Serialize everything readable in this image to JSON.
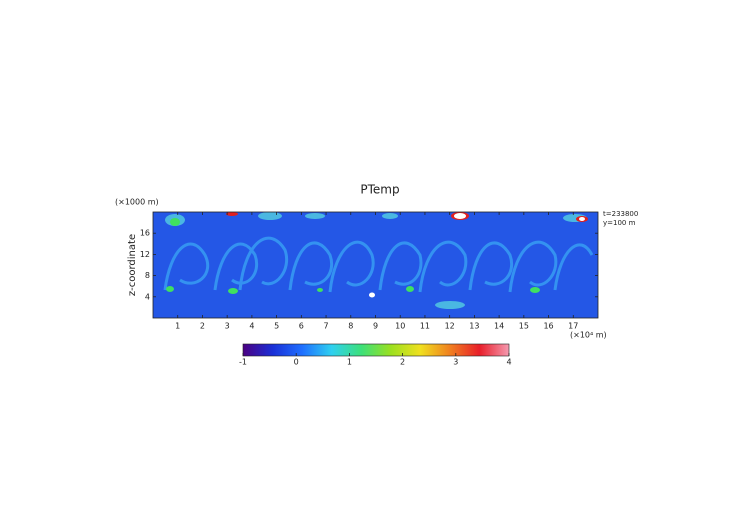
{
  "chart_data": {
    "type": "heatmap",
    "title": "PTemp",
    "xlabel": "(×10⁴ m)",
    "ylabel": "z-coordinate",
    "ylabel_unit": "(×1000 m)",
    "annotations": [
      "t=233800",
      "y=100 m"
    ],
    "xlim": [
      0,
      18
    ],
    "xticks": [
      1,
      2,
      3,
      4,
      5,
      6,
      7,
      8,
      9,
      10,
      11,
      12,
      13,
      14,
      15,
      16,
      17
    ],
    "ylim": [
      0,
      20
    ],
    "yticks": [
      4,
      8,
      12,
      16
    ],
    "colorbar": {
      "lim": [
        -1,
        4
      ],
      "ticks": [
        -1,
        0,
        1,
        2,
        3,
        4
      ],
      "colors": [
        "#4b0082",
        "#1a2fd6",
        "#1f6fff",
        "#2fd0f0",
        "#3ce07a",
        "#9be020",
        "#f0e020",
        "#f08020",
        "#e81e2a",
        "#f59ab0"
      ]
    }
  }
}
